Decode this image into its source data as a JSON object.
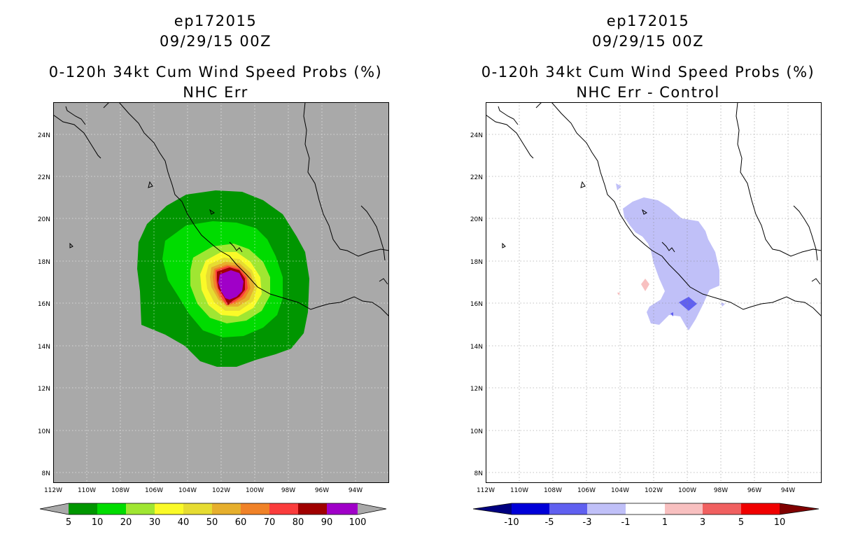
{
  "left_panel": {
    "storm_id": "ep172015",
    "datetime": "09/29/15 00Z",
    "product": "0-120h 34kt Cum Wind Speed Probs (%)",
    "subtitle": "NHC Err",
    "colorbar": {
      "labels": [
        "5",
        "10",
        "20",
        "30",
        "40",
        "50",
        "60",
        "70",
        "80",
        "90",
        "100"
      ],
      "colors": [
        "#009600",
        "#00dc00",
        "#a0e632",
        "#fafa28",
        "#e6dc32",
        "#e6af2d",
        "#f08228",
        "#fa3c3c",
        "#a00000",
        "#a000c8"
      ],
      "under_color": "#a9a9a9",
      "over_color": "#a9a9a9"
    }
  },
  "right_panel": {
    "storm_id": "ep172015",
    "datetime": "09/29/15 00Z",
    "product": "0-120h 34kt Cum Wind Speed Probs (%)",
    "subtitle": "NHC Err - Control",
    "colorbar": {
      "labels": [
        "-10",
        "-5",
        "-3",
        "-1",
        "1",
        "3",
        "5",
        "10"
      ],
      "colors": [
        "#0000d8",
        "#6060f0",
        "#c0c0f8",
        "#ffffff",
        "#f8c0c0",
        "#f06060",
        "#f00000"
      ],
      "under_color": "#000080",
      "over_color": "#800000"
    }
  },
  "map": {
    "lon_labels": [
      "112W",
      "110W",
      "108W",
      "106W",
      "104W",
      "102W",
      "100W",
      "98W",
      "96W",
      "94W"
    ],
    "lat_labels": [
      "24N",
      "22N",
      "20N",
      "18N",
      "16N",
      "14N",
      "12N",
      "10N",
      "8N"
    ],
    "background_left": "#a9a9a9",
    "background_right": "#ffffff"
  }
}
